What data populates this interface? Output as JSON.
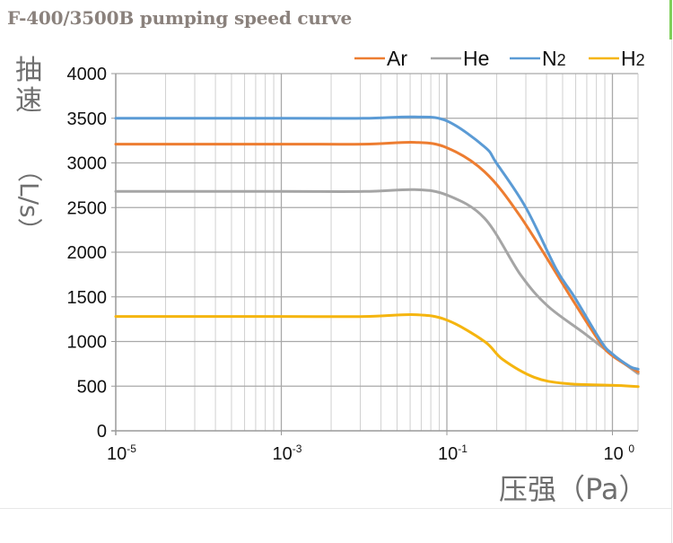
{
  "chart_data": {
    "type": "line",
    "title": "F-400/3500B pumping speed curve",
    "ylabel": "抽速（L/s）",
    "ylabel_chars": [
      "抽",
      "速"
    ],
    "ylabel_unit": "（L/s）",
    "xlabel": "压强（Pa）",
    "x_scale": "log (nonuniform: each labeled tick spans one log cycle)",
    "x_ticks": [
      {
        "value": 1e-05,
        "base": "10",
        "exp": "-5"
      },
      {
        "value": 0.001,
        "base": "10",
        "exp": "-3"
      },
      {
        "value": 0.1,
        "base": "10",
        "exp": "-1"
      },
      {
        "value": 1,
        "base": "10 ",
        "exp": "0"
      }
    ],
    "xlim": [
      1e-05,
      1.43
    ],
    "ylim": [
      0,
      4000
    ],
    "y_ticks": [
      0,
      500,
      1000,
      1500,
      2000,
      2500,
      3000,
      3500,
      4000
    ],
    "grid": true,
    "legend_position": "top-right",
    "series": [
      {
        "name": "Ar",
        "label_main": "Ar",
        "label_sub": "",
        "color": "#ed7d31",
        "x": [
          1e-05,
          0.001,
          0.01,
          0.041,
          0.1,
          0.169,
          0.278,
          0.56,
          0.834,
          1.0,
          1.43
        ],
        "y": [
          3210,
          3210,
          3210,
          3230,
          3170,
          2900,
          2400,
          1500,
          1000,
          840,
          660
        ]
      },
      {
        "name": "He",
        "label_main": "He",
        "label_sub": "",
        "color": "#a5a5a5",
        "x": [
          1e-05,
          0.001,
          0.01,
          0.041,
          0.1,
          0.169,
          0.278,
          0.405,
          0.667,
          1.0,
          1.43
        ],
        "y": [
          2680,
          2680,
          2680,
          2700,
          2640,
          2380,
          1750,
          1400,
          1100,
          850,
          640
        ]
      },
      {
        "name": "N2",
        "label_main": "N",
        "label_sub": "2",
        "color": "#5b9bd5",
        "x": [
          1e-05,
          0.001,
          0.01,
          0.041,
          0.1,
          0.169,
          0.199,
          0.3,
          0.458,
          0.589,
          0.855,
          1.0,
          1.276,
          1.43
        ],
        "y": [
          3500,
          3500,
          3500,
          3515,
          3470,
          3180,
          3000,
          2500,
          1810,
          1500,
          1000,
          860,
          720,
          690
        ]
      },
      {
        "name": "H2",
        "label_main": "H",
        "label_sub": "2",
        "color": "#f5b50f",
        "x": [
          1e-05,
          0.001,
          0.01,
          0.041,
          0.1,
          0.169,
          0.217,
          0.336,
          0.519,
          1.0,
          1.43
        ],
        "y": [
          1280,
          1280,
          1280,
          1300,
          1240,
          1000,
          800,
          600,
          530,
          510,
          495
        ]
      }
    ]
  }
}
